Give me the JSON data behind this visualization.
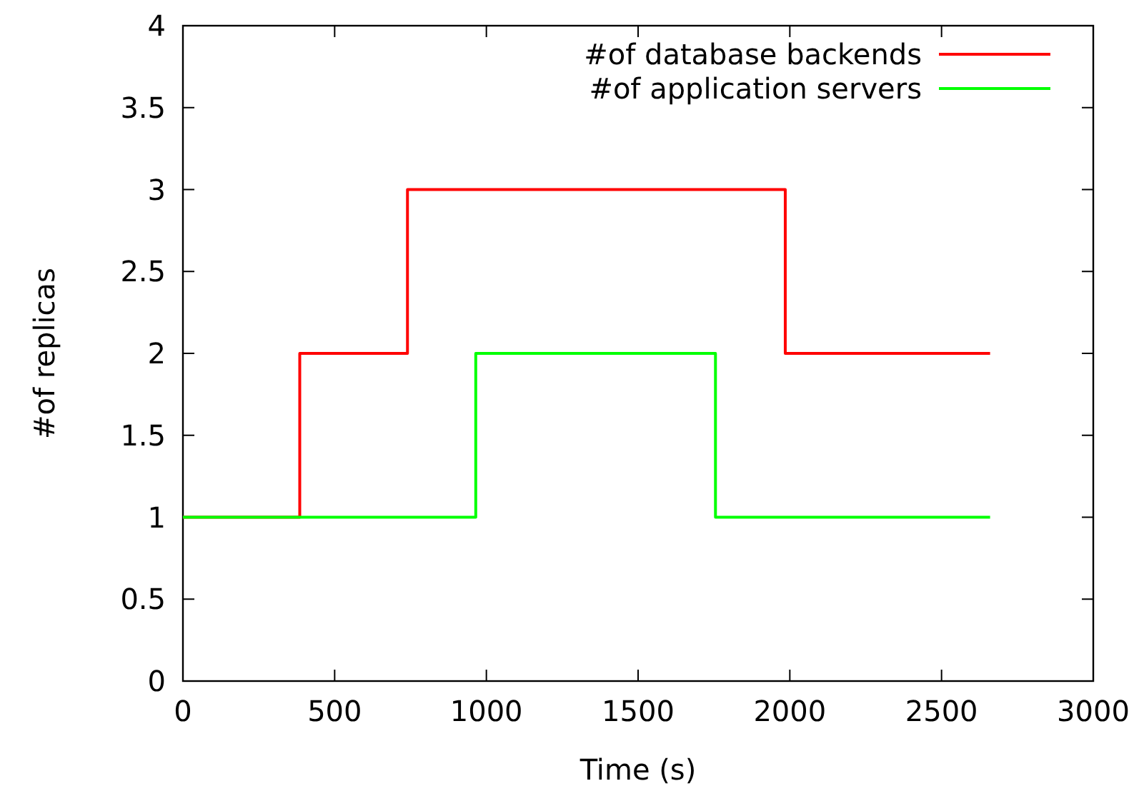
{
  "chart_data": {
    "type": "step",
    "xlabel": "Time (s)",
    "ylabel": "#of replicas",
    "xlim": [
      0,
      3000
    ],
    "ylim": [
      0,
      4
    ],
    "xticks": [
      0,
      500,
      1000,
      1500,
      2000,
      2500,
      3000
    ],
    "yticks": [
      0,
      {
        "value": 0.5,
        "label": "0.5"
      },
      1,
      {
        "value": 1.5,
        "label": "1.5"
      },
      2,
      {
        "value": 2.5,
        "label": "2.5"
      },
      3,
      {
        "value": 3.5,
        "label": "3.5"
      },
      4
    ],
    "grid": false,
    "legend": "top right",
    "line_style": "solid",
    "marker": "none",
    "series": [
      {
        "name": "#of database backends",
        "color": "#ff0000",
        "x": [
          0,
          385,
          740,
          1985,
          2660
        ],
        "values": [
          1,
          2,
          3,
          2,
          2
        ]
      },
      {
        "name": "#of application servers",
        "color": "#00ff00",
        "x": [
          0,
          965,
          1755,
          2660
        ],
        "values": [
          1,
          2,
          1,
          1
        ]
      }
    ]
  }
}
